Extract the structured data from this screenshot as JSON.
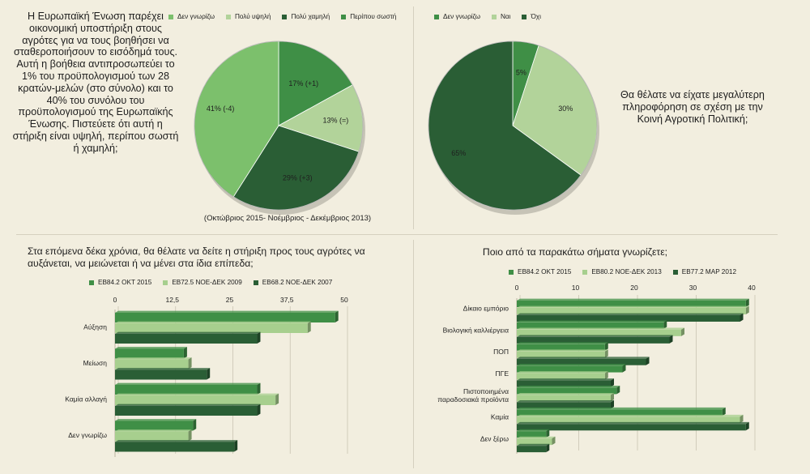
{
  "question_support_level": "Η Ευρωπαϊκή Ένωση παρέχει οικονομική υποστήριξη στους αγρότες για να τους βοηθήσει να σταθεροποιήσουν το εισόδημά τους. Αυτή η βοήθεια αντιπροσωπεύει το 1% του προϋπολογισμού των 28 κρατών-μελών (στο σύνολο) και το 40% του συνόλου του προϋπολογισμού της Ευρωπαϊκής Ένωσης. Πιστεύετε ότι αυτή η στήριξη είναι υψηλή, περίπου σωστή ή χαμηλή;",
  "question_more_info": "Θα θέλατε να είχατε μεγαλύτερη πληροφόρηση σε σχέση με την Κοινή Αγροτική Πολιτική;",
  "question_future": "Στα επόμενα δέκα χρόνια, θα θέλατε να δείτε η στήριξη προς τους αγρότες να αυξάνεται, να μειώνεται ή να μένει στα ίδια επίπεδα;",
  "question_labels": "Ποιο από τα παρακάτω σήματα γνωρίζετε;",
  "period_note": "(Οκτώβριος 2015- Νοέμβριος - Δεκέμβριος 2013)",
  "chart_data": [
    {
      "type": "pie",
      "legend": [
        "Δεν γνωρίζω",
        "Πολύ υψηλή",
        "Πολύ χαμηλή",
        "Περίπου σωστή"
      ],
      "slices": [
        {
          "name": "Περίπου σωστή",
          "value": 17,
          "label": "17% (+1)",
          "color": "#3f8f46"
        },
        {
          "name": "Πολύ υψηλή",
          "value": 13,
          "label": "13% (=)",
          "color": "#b2d39a"
        },
        {
          "name": "Πολύ χαμηλή",
          "value": 29,
          "label": "29% (+3)",
          "color": "#2a5e35"
        },
        {
          "name": "Δεν γνωρίζω",
          "value": 41,
          "label": "41% (-4)",
          "color": "#7cc06c"
        }
      ]
    },
    {
      "type": "pie",
      "legend": [
        "Δεν γνωρίζω",
        "Ναι",
        "Όχι"
      ],
      "slices": [
        {
          "name": "Δεν γνωρίζω",
          "value": 5,
          "label": "5%",
          "color": "#3f8f46"
        },
        {
          "name": "Ναι",
          "value": 30,
          "label": "30%",
          "color": "#b2d39a"
        },
        {
          "name": "Όχι",
          "value": 65,
          "label": "65%",
          "color": "#2a5e35"
        }
      ]
    },
    {
      "type": "bar",
      "orientation": "horizontal",
      "categories": [
        "Αύξηση",
        "Μείωση",
        "Καμία αλλαγή",
        "Δεν γνωρίζω"
      ],
      "series": [
        {
          "name": "EB84.2 ΟΚΤ 2015",
          "color": "#3f8f46",
          "values": [
            48,
            15,
            31,
            17
          ]
        },
        {
          "name": "EB72.5 ΝΟΕ-ΔΕΚ 2009",
          "color": "#a7cf8e",
          "values": [
            42,
            16,
            35,
            16
          ]
        },
        {
          "name": "EB68.2 ΝΟΕ-ΔΕΚ 2007",
          "color": "#2a5e35",
          "values": [
            31,
            20,
            31,
            26
          ]
        }
      ],
      "xticks": [
        "0",
        "12,5",
        "25",
        "37,5",
        "50"
      ],
      "xlim": [
        0,
        50
      ]
    },
    {
      "type": "bar",
      "orientation": "horizontal",
      "categories": [
        "Δίκαιο εμπόριο",
        "Βιολογική καλλιέργεια",
        "ΠΟΠ",
        "ΠΓΕ",
        "Πιστοποιημένα παραδοσιακά προϊόντα",
        "Καμία",
        "Δεν ξέρω"
      ],
      "series": [
        {
          "name": "EB84.2 ΟΚΤ 2015",
          "color": "#3f8f46",
          "values": [
            39,
            25,
            15,
            18,
            17,
            35,
            5
          ]
        },
        {
          "name": "EB80.2 ΝΟΕ-ΔΕΚ 2013",
          "color": "#a7cf8e",
          "values": [
            39,
            28,
            15,
            15,
            16,
            38,
            6
          ]
        },
        {
          "name": "EB77.2 ΜΑΡ 2012",
          "color": "#2a5e35",
          "values": [
            38,
            26,
            22,
            16,
            16,
            39,
            5
          ]
        }
      ],
      "xticks": [
        "0",
        "10",
        "20",
        "30",
        "40"
      ],
      "xlim": [
        0,
        40
      ]
    }
  ]
}
